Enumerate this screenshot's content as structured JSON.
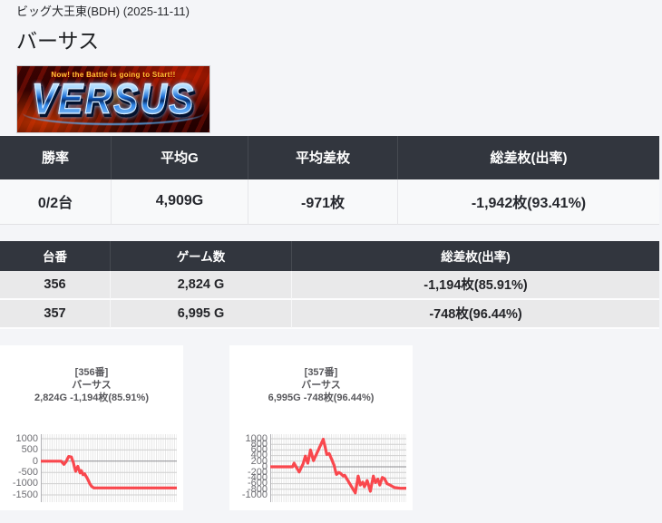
{
  "header": {
    "venue_line": "ビッグ大王東(BDH) (2025-11-11)",
    "page_title": "バーサス"
  },
  "logo": {
    "tagline": "Now! the Battle is going to Start!!",
    "word": "VERSUS"
  },
  "summary_table": {
    "headers": [
      "勝率",
      "平均G",
      "平均差枚",
      "総差枚(出率)"
    ],
    "values": [
      "0/2台",
      "4,909G",
      "-971枚",
      "-1,942枚(93.41%)"
    ]
  },
  "machines_table": {
    "headers": [
      "台番",
      "ゲーム数",
      "総差枚(出率)"
    ],
    "rows": [
      [
        "356",
        "2,824 G",
        "-1,194枚(85.91%)"
      ],
      [
        "357",
        "6,995 G",
        "-748枚(96.44%)"
      ]
    ]
  },
  "colors": {
    "table_header_bg": "#32363e",
    "row_bg": "#e9e9ea",
    "line_red": "#f9474d",
    "grid_light": "#dedede",
    "grid_tick": "#cfcfcf",
    "zero_line": "#8c8c90"
  },
  "chart_data": [
    {
      "type": "line",
      "title_lines": [
        "[356番]",
        "バーサス",
        "2,824G -1,194枚(85.91%)"
      ],
      "xlabel": "",
      "ylabel": "",
      "ylim": [
        -1500,
        1000
      ],
      "yticks": [
        1000,
        500,
        0,
        -500,
        -1000,
        -1500
      ],
      "grid": "dense-vertical",
      "legend": "none",
      "series_color": "#f9474d",
      "final_value": -1194,
      "points": [
        [
          0.0,
          0
        ],
        [
          0.15,
          0
        ],
        [
          0.17,
          -140
        ],
        [
          0.185,
          -30
        ],
        [
          0.205,
          210
        ],
        [
          0.225,
          185
        ],
        [
          0.24,
          -80
        ],
        [
          0.256,
          -450
        ],
        [
          0.272,
          -230
        ],
        [
          0.289,
          -520
        ],
        [
          0.298,
          -420
        ],
        [
          0.311,
          -600
        ],
        [
          0.322,
          -560
        ],
        [
          0.345,
          -800
        ],
        [
          0.36,
          -1000
        ],
        [
          0.373,
          -1120
        ],
        [
          0.39,
          -1190
        ],
        [
          1.0,
          -1190
        ]
      ]
    },
    {
      "type": "line",
      "title_lines": [
        "[357番]",
        "バーサス",
        "6,995G -748枚(96.44%)"
      ],
      "xlabel": "",
      "ylabel": "",
      "ylim": [
        -1000,
        1000
      ],
      "yticks": [
        1000,
        800,
        600,
        400,
        200,
        0,
        -200,
        -400,
        -600,
        -800,
        -1000
      ],
      "grid": "dense-vertical",
      "legend": "none",
      "series_color": "#f9474d",
      "final_value": -748,
      "points": [
        [
          0.0,
          0
        ],
        [
          0.164,
          0
        ],
        [
          0.175,
          130
        ],
        [
          0.19,
          0
        ],
        [
          0.213,
          -185
        ],
        [
          0.242,
          110
        ],
        [
          0.258,
          380
        ],
        [
          0.276,
          130
        ],
        [
          0.296,
          600
        ],
        [
          0.318,
          220
        ],
        [
          0.39,
          980
        ],
        [
          0.416,
          440
        ],
        [
          0.433,
          470
        ],
        [
          0.451,
          270
        ],
        [
          0.469,
          60
        ],
        [
          0.487,
          -270
        ],
        [
          0.504,
          -200
        ],
        [
          0.518,
          -240
        ],
        [
          0.536,
          -330
        ],
        [
          0.547,
          -300
        ],
        [
          0.562,
          -420
        ],
        [
          0.625,
          -930
        ],
        [
          0.647,
          -330
        ],
        [
          0.662,
          -650
        ],
        [
          0.68,
          -550
        ],
        [
          0.693,
          -710
        ],
        [
          0.713,
          -490
        ],
        [
          0.736,
          -870
        ],
        [
          0.758,
          -330
        ],
        [
          0.773,
          -560
        ],
        [
          0.791,
          -440
        ],
        [
          0.805,
          -650
        ],
        [
          0.824,
          -380
        ],
        [
          0.84,
          -420
        ],
        [
          0.858,
          -600
        ],
        [
          0.88,
          -650
        ],
        [
          0.913,
          -740
        ],
        [
          0.958,
          -765
        ],
        [
          1.0,
          -760
        ]
      ]
    }
  ]
}
